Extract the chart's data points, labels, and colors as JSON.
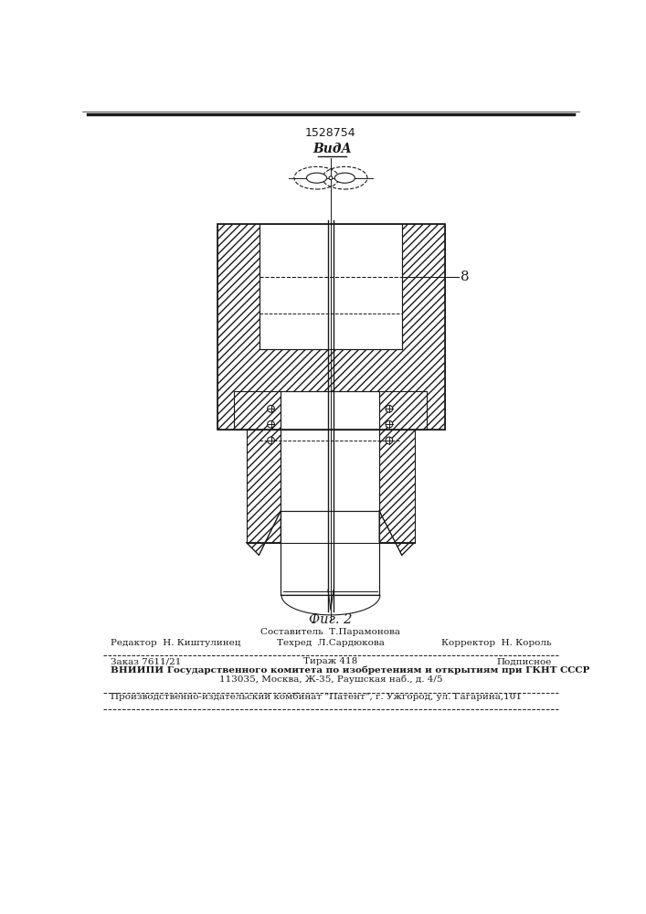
{
  "patent_number": "1528754",
  "view_label": "ВидА",
  "fig_label": "Фиг. 2",
  "label_8": "8",
  "bg_color": "#ffffff",
  "line_color": "#1a1a1a",
  "footer_sestavitel": "Составитель  Т.Парамонова",
  "footer_redaktor": "Редактор  Н. Киштулинец",
  "footer_tehred": "Техред  Л.Сардюкова",
  "footer_korrektor": "Корректор  Н. Король",
  "footer_zakaz": "Заказ 7611/21",
  "footer_tirazh": "Тираж 418",
  "footer_podpisnoe": "Подписное",
  "footer_vniipи": "ВНИИПИ Государственного комитета по изобретениям и открытиям при ГКНТ СССР",
  "footer_address": "113035, Москва, Ж-35, Раушская наб., д. 4/5",
  "footer_patent": "Производственно-издательский комбинат \"Патент\", г. Ужгород, ул. Гагарина,101"
}
